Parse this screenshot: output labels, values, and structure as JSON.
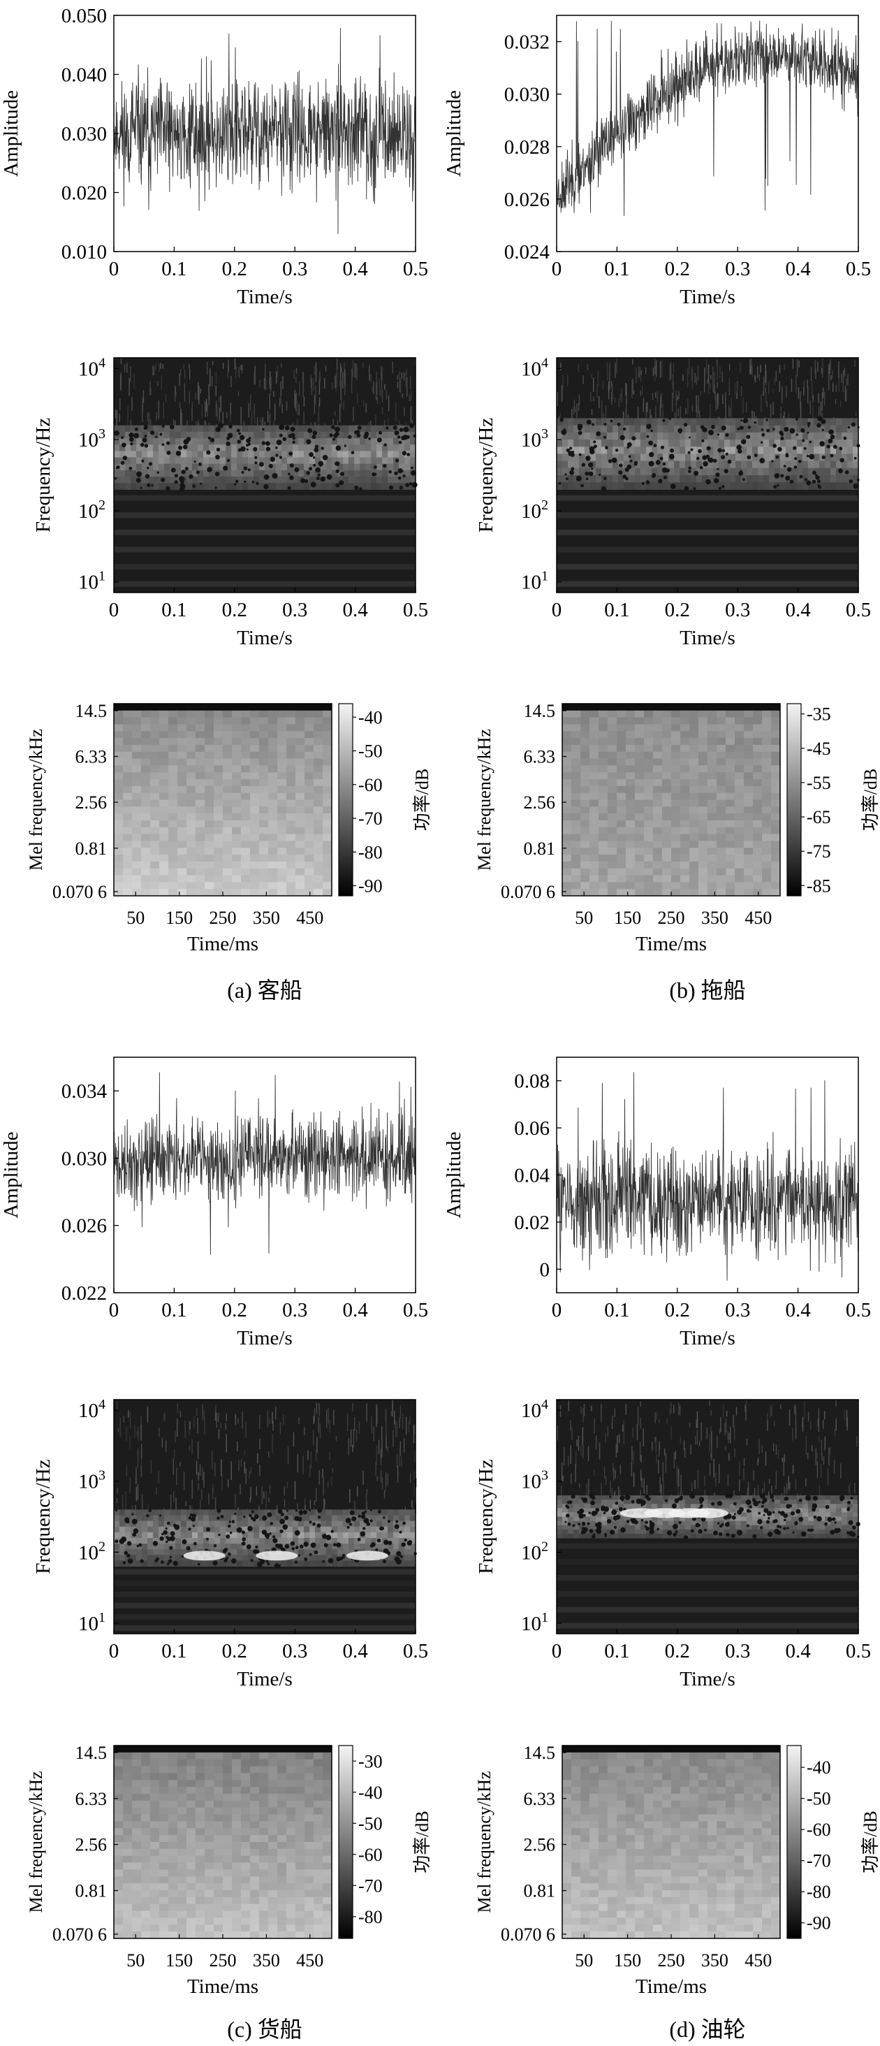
{
  "figure_title": "",
  "chart_data": [
    {
      "id": "a_waveform",
      "type": "line",
      "xlabel": "Time/s",
      "ylabel": "Amplitude",
      "xlim": [
        0,
        0.5
      ],
      "ylim": [
        0.01,
        0.05
      ],
      "xticks": [
        "0",
        "0.1",
        "0.2",
        "0.3",
        "0.4",
        "0.5"
      ],
      "yticks": [
        "0.010",
        "0.020",
        "0.030",
        "0.040",
        "0.050"
      ],
      "ytick_values": [
        0.01,
        0.02,
        0.03,
        0.04,
        0.05
      ],
      "signal": {
        "start": 0.03,
        "end": 0.03,
        "noise": 0.0045,
        "peak_min": 0.011,
        "peak_max": 0.048
      }
    },
    {
      "id": "b_waveform",
      "type": "line",
      "xlabel": "Time/s",
      "ylabel": "Amplitude",
      "xlim": [
        0,
        0.5
      ],
      "ylim": [
        0.024,
        0.033
      ],
      "xticks": [
        "0",
        "0.1",
        "0.2",
        "0.3",
        "0.4",
        "0.5"
      ],
      "yticks": [
        "0.024",
        "0.026",
        "0.028",
        "0.030",
        "0.032"
      ],
      "ytick_values": [
        0.024,
        0.026,
        0.028,
        0.03,
        0.032
      ],
      "signal": {
        "start": 0.0262,
        "end": 0.0305,
        "noise": 0.0006,
        "peak_min": 0.025,
        "peak_max": 0.0328
      }
    },
    {
      "id": "a_cwt",
      "type": "heatmap",
      "xlabel": "Time/s",
      "ylabel": "Frequency/Hz",
      "xlim": [
        0,
        0.5
      ],
      "ylim_log10": [
        0.85,
        4.15
      ],
      "xticks": [
        "0",
        "0.1",
        "0.2",
        "0.3",
        "0.4",
        "0.5"
      ],
      "yticks": [
        {
          "base": "10",
          "exp": "1",
          "value": 1
        },
        {
          "base": "10",
          "exp": "2",
          "value": 2
        },
        {
          "base": "10",
          "exp": "3",
          "value": 3
        },
        {
          "base": "10",
          "exp": "4",
          "value": 4
        }
      ],
      "bright_band_log10": [
        2.3,
        3.2
      ],
      "hotspot_log10": null,
      "hotspots_s": []
    },
    {
      "id": "b_cwt",
      "type": "heatmap",
      "xlabel": "Time/s",
      "ylabel": "Frequency/Hz",
      "xlim": [
        0,
        0.5
      ],
      "ylim_log10": [
        0.85,
        4.15
      ],
      "xticks": [
        "0",
        "0.1",
        "0.2",
        "0.3",
        "0.4",
        "0.5"
      ],
      "yticks": [
        {
          "base": "10",
          "exp": "1",
          "value": 1
        },
        {
          "base": "10",
          "exp": "2",
          "value": 2
        },
        {
          "base": "10",
          "exp": "3",
          "value": 3
        },
        {
          "base": "10",
          "exp": "4",
          "value": 4
        }
      ],
      "bright_band_log10": [
        2.3,
        3.3
      ],
      "hotspot_log10": null,
      "hotspots_s": []
    },
    {
      "id": "a_mel",
      "type": "heatmap",
      "xlabel": "Time/ms",
      "ylabel": "Mel frequency/kHz",
      "xticks": [
        "50",
        "150",
        "250",
        "350",
        "450"
      ],
      "xtick_values": [
        50,
        150,
        250,
        350,
        450
      ],
      "xlim": [
        0,
        500
      ],
      "yticks": [
        "14.5",
        "6.33",
        "2.56",
        "0.81",
        "0.070 6"
      ],
      "colorbar": {
        "label": "功率/dB",
        "ticks": [
          "-40",
          "-50",
          "-60",
          "-70",
          "-80",
          "-90"
        ],
        "tick_values": [
          -40,
          -50,
          -60,
          -70,
          -80,
          -90
        ],
        "range": [
          -93,
          -36
        ]
      },
      "level_top_db": -62,
      "level_bottom_db": -48
    },
    {
      "id": "b_mel",
      "type": "heatmap",
      "xlabel": "Time/ms",
      "ylabel": "Mel frequency/kHz",
      "xticks": [
        "50",
        "150",
        "250",
        "350",
        "450"
      ],
      "xtick_values": [
        50,
        150,
        250,
        350,
        450
      ],
      "xlim": [
        0,
        500
      ],
      "yticks": [
        "14.5",
        "6.33",
        "2.56",
        "0.81",
        "0.070 6"
      ],
      "colorbar": {
        "label": "功率/dB",
        "ticks": [
          "-35",
          "-45",
          "-55",
          "-65",
          "-75",
          "-85"
        ],
        "tick_values": [
          -35,
          -45,
          -55,
          -65,
          -75,
          -85
        ],
        "range": [
          -88,
          -32
        ]
      },
      "level_top_db": -57,
      "level_bottom_db": -52
    },
    {
      "id": "c_waveform",
      "type": "line",
      "xlabel": "Time/s",
      "ylabel": "Amplitude",
      "xlim": [
        0,
        0.5
      ],
      "ylim": [
        0.022,
        0.036
      ],
      "xticks": [
        "0",
        "0.1",
        "0.2",
        "0.3",
        "0.4",
        "0.5"
      ],
      "yticks": [
        "0.022",
        "0.026",
        "0.030",
        "0.034"
      ],
      "ytick_values": [
        0.022,
        0.026,
        0.03,
        0.034
      ],
      "signal": {
        "start": 0.0295,
        "end": 0.03,
        "noise": 0.0012,
        "peak_min": 0.024,
        "peak_max": 0.0355
      }
    },
    {
      "id": "d_waveform",
      "type": "line",
      "xlabel": "Time/s",
      "ylabel": "Amplitude",
      "xlim": [
        0,
        0.5
      ],
      "ylim": [
        -0.01,
        0.09
      ],
      "xticks": [
        "0",
        "0.1",
        "0.2",
        "0.3",
        "0.4",
        "0.5"
      ],
      "yticks": [
        "0",
        "0.02",
        "0.04",
        "0.06",
        "0.08"
      ],
      "ytick_values": [
        0,
        0.02,
        0.04,
        0.06,
        0.08
      ],
      "signal": {
        "start": 0.03,
        "end": 0.03,
        "noise": 0.011,
        "peak_min": -0.005,
        "peak_max": 0.085
      }
    },
    {
      "id": "c_cwt",
      "type": "heatmap",
      "xlabel": "Time/s",
      "ylabel": "Frequency/Hz",
      "xlim": [
        0,
        0.5
      ],
      "ylim_log10": [
        0.85,
        4.15
      ],
      "xticks": [
        "0",
        "0.1",
        "0.2",
        "0.3",
        "0.4",
        "0.5"
      ],
      "yticks": [
        {
          "base": "10",
          "exp": "1",
          "value": 1
        },
        {
          "base": "10",
          "exp": "2",
          "value": 2
        },
        {
          "base": "10",
          "exp": "3",
          "value": 3
        },
        {
          "base": "10",
          "exp": "4",
          "value": 4
        }
      ],
      "bright_band_log10": [
        1.8,
        2.6
      ],
      "hotspot_log10": 1.95,
      "hotspots_s": [
        0.15,
        0.27,
        0.42
      ]
    },
    {
      "id": "d_cwt",
      "type": "heatmap",
      "xlabel": "Time/s",
      "ylabel": "Frequency/Hz",
      "xlim": [
        0,
        0.5
      ],
      "ylim_log10": [
        0.85,
        4.15
      ],
      "xticks": [
        "0",
        "0.1",
        "0.2",
        "0.3",
        "0.4",
        "0.5"
      ],
      "yticks": [
        {
          "base": "10",
          "exp": "1",
          "value": 1
        },
        {
          "base": "10",
          "exp": "2",
          "value": 2
        },
        {
          "base": "10",
          "exp": "3",
          "value": 3
        },
        {
          "base": "10",
          "exp": "4",
          "value": 4
        }
      ],
      "bright_band_log10": [
        2.2,
        2.8
      ],
      "hotspot_log10": 2.55,
      "hotspots_s": [
        0.14,
        0.18,
        0.22,
        0.25
      ]
    },
    {
      "id": "c_mel",
      "type": "heatmap",
      "xlabel": "Time/ms",
      "ylabel": "Mel frequency/kHz",
      "xticks": [
        "50",
        "150",
        "250",
        "350",
        "450"
      ],
      "xtick_values": [
        50,
        150,
        250,
        350,
        450
      ],
      "xlim": [
        0,
        500
      ],
      "yticks": [
        "14.5",
        "6.33",
        "2.56",
        "0.81",
        "0.070 6"
      ],
      "colorbar": {
        "label": "功率/dB",
        "ticks": [
          "-30",
          "-40",
          "-50",
          "-60",
          "-70",
          "-80"
        ],
        "tick_values": [
          -30,
          -40,
          -50,
          -60,
          -70,
          -80
        ],
        "range": [
          -87,
          -25
        ]
      },
      "level_top_db": -56,
      "level_bottom_db": -40
    },
    {
      "id": "d_mel",
      "type": "heatmap",
      "xlabel": "Time/ms",
      "ylabel": "Mel frequency/kHz",
      "xticks": [
        "50",
        "150",
        "250",
        "350",
        "450"
      ],
      "xtick_values": [
        50,
        150,
        250,
        350,
        450
      ],
      "xlim": [
        0,
        500
      ],
      "yticks": [
        "14.5",
        "6.33",
        "2.56",
        "0.81",
        "0.070 6"
      ],
      "colorbar": {
        "label": "功率/dB",
        "ticks": [
          "-40",
          "-50",
          "-60",
          "-70",
          "-80",
          "-90"
        ],
        "tick_values": [
          -40,
          -50,
          -60,
          -70,
          -80,
          -90
        ],
        "range": [
          -95,
          -33
        ]
      },
      "level_top_db": -62,
      "level_bottom_db": -48
    }
  ],
  "captions": [
    {
      "id": "a",
      "text": "(a) 客船"
    },
    {
      "id": "b",
      "text": "(b) 拖船"
    },
    {
      "id": "c",
      "text": "(c) 货船"
    },
    {
      "id": "d",
      "text": "(d) 油轮"
    }
  ]
}
